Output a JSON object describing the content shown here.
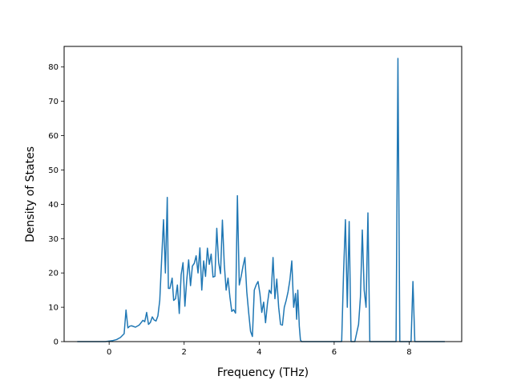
{
  "chart_data": {
    "type": "line",
    "title": "",
    "xlabel": "Frequency (THz)",
    "ylabel": "Density of States",
    "xlim": [
      -1.2,
      9.4
    ],
    "ylim": [
      0,
      86
    ],
    "xticks": [
      0,
      2,
      4,
      6,
      8
    ],
    "yticks": [
      0,
      10,
      20,
      30,
      40,
      50,
      60,
      70,
      80
    ],
    "grid": false,
    "legend": "none",
    "series": [
      {
        "color": "#1f77b4",
        "x": [
          -0.85,
          -0.1,
          0.1,
          0.2,
          0.3,
          0.4,
          0.45,
          0.5,
          0.55,
          0.6,
          0.7,
          0.8,
          0.9,
          0.95,
          1.0,
          1.05,
          1.1,
          1.15,
          1.2,
          1.25,
          1.3,
          1.35,
          1.4,
          1.45,
          1.5,
          1.55,
          1.58,
          1.62,
          1.68,
          1.72,
          1.77,
          1.82,
          1.87,
          1.92,
          1.97,
          2.02,
          2.07,
          2.12,
          2.17,
          2.22,
          2.27,
          2.32,
          2.37,
          2.42,
          2.47,
          2.52,
          2.57,
          2.62,
          2.67,
          2.72,
          2.77,
          2.82,
          2.87,
          2.92,
          2.97,
          3.02,
          3.07,
          3.12,
          3.17,
          3.22,
          3.27,
          3.32,
          3.37,
          3.42,
          3.47,
          3.52,
          3.57,
          3.62,
          3.67,
          3.72,
          3.77,
          3.82,
          3.87,
          3.92,
          3.97,
          4.02,
          4.07,
          4.12,
          4.17,
          4.22,
          4.27,
          4.32,
          4.37,
          4.42,
          4.47,
          4.52,
          4.57,
          4.62,
          4.67,
          4.72,
          4.77,
          4.82,
          4.87,
          4.92,
          4.97,
          5.0,
          5.03,
          5.07,
          5.1,
          5.13,
          5.17,
          5.2,
          5.25,
          5.3,
          6.2,
          6.25,
          6.3,
          6.35,
          6.4,
          6.45,
          6.5,
          6.55,
          6.6,
          6.65,
          6.7,
          6.75,
          6.8,
          6.85,
          6.9,
          6.95,
          7.0,
          7.65,
          7.7,
          7.75,
          8.05,
          8.1,
          8.15,
          8.2,
          8.95
        ],
        "y": [
          0,
          0,
          0.3,
          0.6,
          1.2,
          2.3,
          9.2,
          4.0,
          4.5,
          4.6,
          4.2,
          4.8,
          6.2,
          5.8,
          8.5,
          5.0,
          5.6,
          7.2,
          6.3,
          6.0,
          7.5,
          12,
          24,
          35.5,
          20,
          42,
          15.5,
          15.5,
          18.5,
          12,
          12.5,
          16.5,
          8.2,
          19.5,
          23,
          10.3,
          18,
          23.8,
          16.3,
          22,
          22.8,
          25,
          20,
          27.3,
          15,
          23.5,
          19,
          27.2,
          22.5,
          25.5,
          18.8,
          19,
          33,
          23,
          19.8,
          35.4,
          22.5,
          15,
          18.5,
          13,
          8.8,
          9.3,
          8.3,
          42.5,
          16.5,
          19,
          22,
          24.5,
          14.5,
          8.5,
          3,
          1.5,
          15,
          16.5,
          17.5,
          14,
          8.5,
          11.5,
          5.5,
          11,
          15,
          14,
          24.5,
          12.5,
          18.2,
          10,
          5,
          4.8,
          10,
          12,
          14.5,
          18,
          23.5,
          10,
          14,
          6.5,
          15,
          4.5,
          0.5,
          0,
          0,
          0,
          0,
          0,
          0,
          20,
          35.5,
          10,
          35,
          0,
          0,
          0,
          2.5,
          5,
          13,
          32.5,
          15,
          10,
          37.5,
          0,
          0,
          0,
          82.5,
          0,
          0,
          17.5,
          0,
          0,
          0
        ]
      }
    ]
  }
}
